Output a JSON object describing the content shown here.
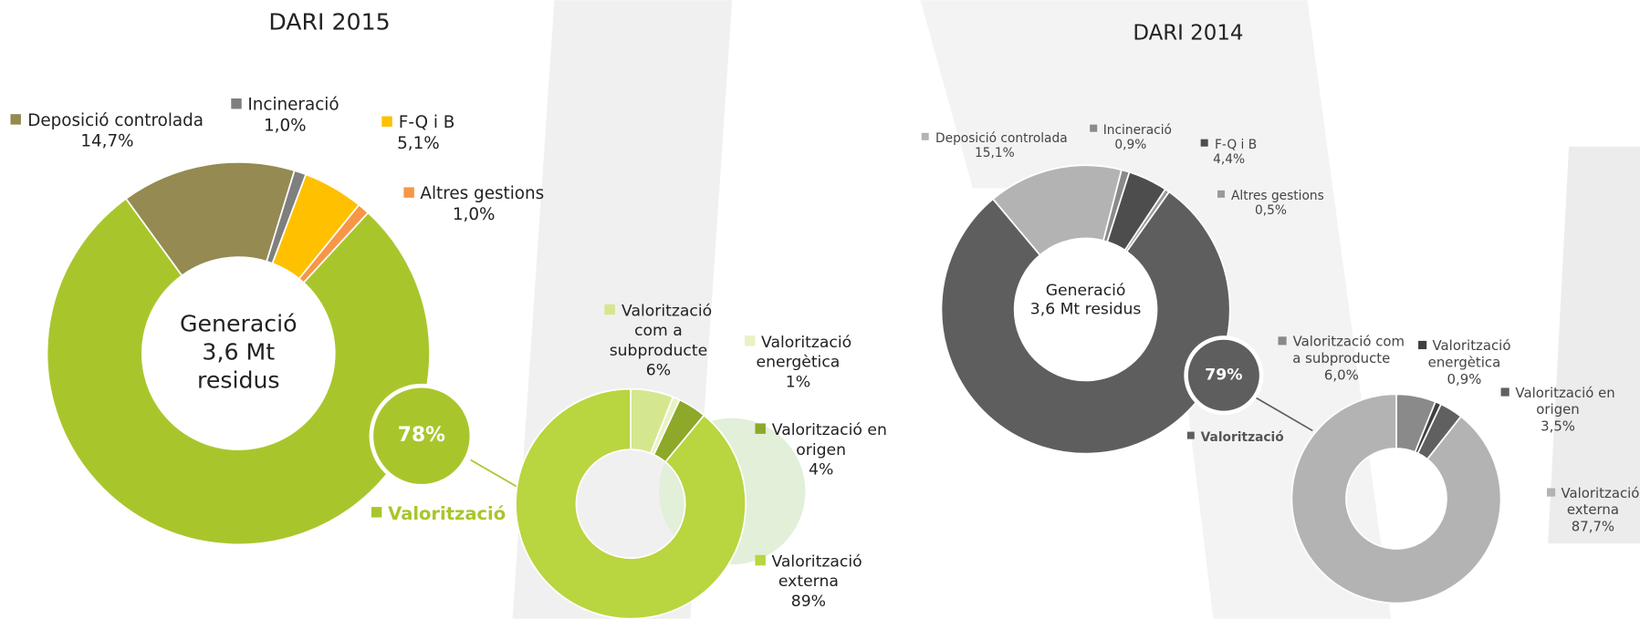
{
  "chart_data": [
    {
      "type": "donut",
      "title": "DARI 2015",
      "center": [
        "Generació",
        "3,6 Mt",
        "residus"
      ],
      "categories": [
        "Deposició controlada",
        "Incineració",
        "F-Q i B",
        "Altres gestions",
        "Valorització"
      ],
      "values": [
        14.7,
        1.0,
        5.1,
        1.0,
        78
      ],
      "value_labels": [
        "14,7%",
        "1,0%",
        "5,1%",
        "1,0%",
        "78%"
      ],
      "colors": [
        "#948a52",
        "#7f7f7f",
        "#ffc000",
        "#f79646",
        "#a8c62c"
      ]
    },
    {
      "type": "donut",
      "categories": [
        "Valorització com a subproducte",
        "Valorització energètica",
        "Valorització en origen",
        "Valorització externa"
      ],
      "values": [
        6,
        1,
        4,
        89
      ],
      "value_labels": [
        "6%",
        "1%",
        "4%",
        "89%"
      ],
      "colors": [
        "#d5e78e",
        "#e9f2c4",
        "#8ea82a",
        "#b9d53f"
      ]
    },
    {
      "type": "donut",
      "title": "DARI 2014",
      "center": [
        "Generació",
        "3,6 Mt residus"
      ],
      "categories": [
        "Deposició controlada",
        "Incineració",
        "F-Q i B",
        "Altres gestions",
        "Valorització"
      ],
      "values": [
        15.1,
        0.9,
        4.4,
        0.5,
        79
      ],
      "value_labels": [
        "15,1%",
        "0,9%",
        "4,4%",
        "0,5%",
        "79%"
      ],
      "colors": [
        "#b3b3b3",
        "#8a8a8a",
        "#4d4d4d",
        "#9a9a9a",
        "#5e5e5e"
      ]
    },
    {
      "type": "donut",
      "categories": [
        "Valorització com a subproducte",
        "Valorització energètica",
        "Valorització en origen",
        "Valorització externa"
      ],
      "values": [
        6.0,
        0.9,
        3.5,
        87.7
      ],
      "value_labels": [
        "6,0%",
        "0,9%",
        "3,5%",
        "87,7%"
      ],
      "colors": [
        "#8a8a8a",
        "#404040",
        "#606060",
        "#b3b3b3"
      ]
    }
  ]
}
